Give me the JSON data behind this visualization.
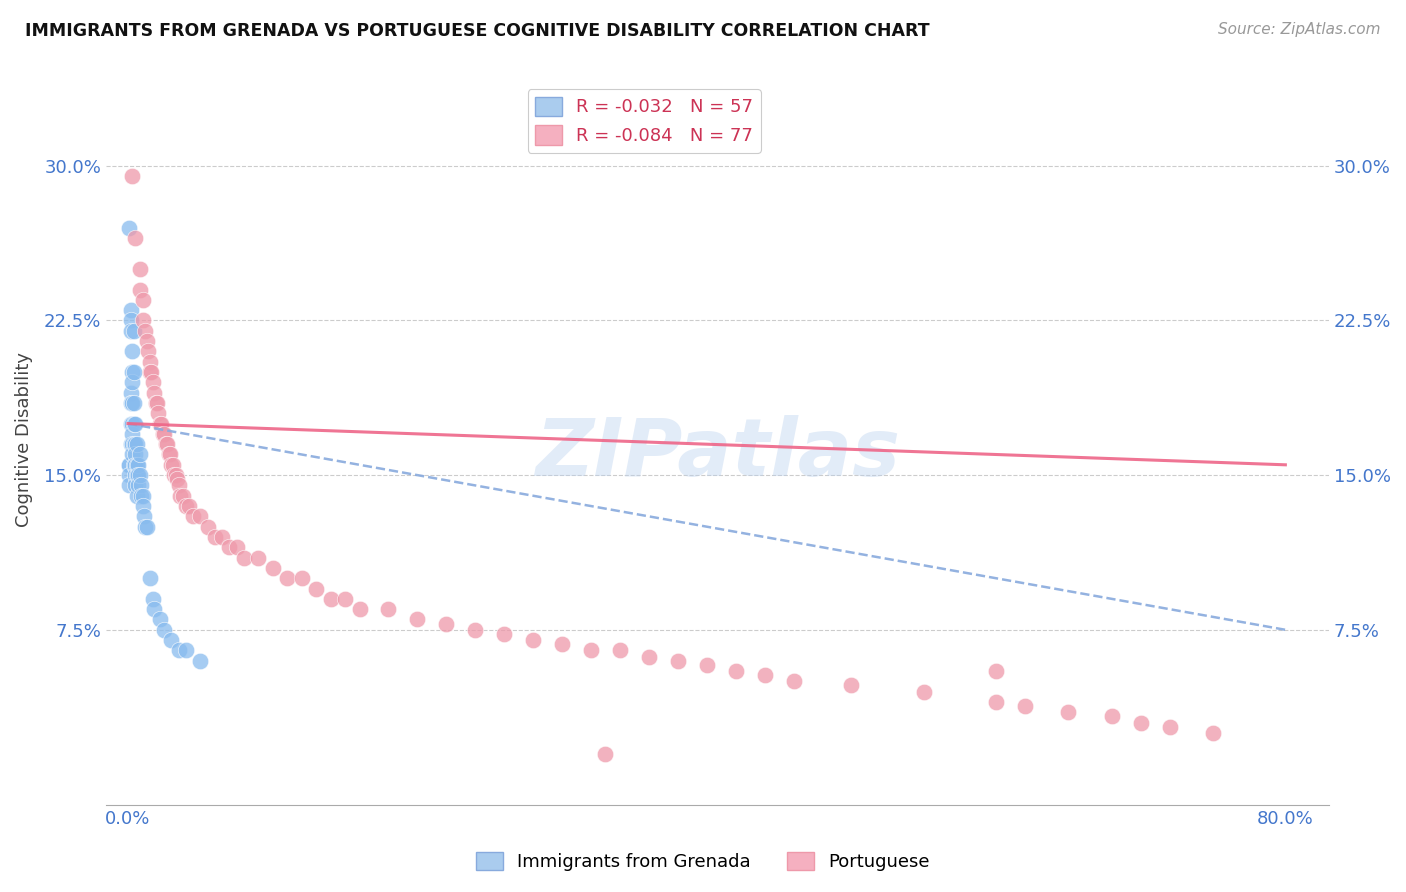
{
  "title": "IMMIGRANTS FROM GRENADA VS PORTUGUESE COGNITIVE DISABILITY CORRELATION CHART",
  "source": "Source: ZipAtlas.com",
  "ylabel": "Cognitive Disability",
  "ytick_labels": [
    "7.5%",
    "15.0%",
    "22.5%",
    "30.0%"
  ],
  "ytick_values": [
    0.075,
    0.15,
    0.225,
    0.3
  ],
  "xlim": [
    0.0,
    0.8
  ],
  "ylim": [
    0.0,
    0.335
  ],
  "grenada_color": "#88bbee",
  "portuguese_color": "#ee99aa",
  "grenada_line_color": "#88aadd",
  "portuguese_line_color": "#ee6688",
  "watermark": "ZIPatlas",
  "grenada_R": -0.032,
  "grenada_N": 57,
  "portuguese_R": -0.084,
  "portuguese_N": 77,
  "legend1_label": "R = -0.032   N = 57",
  "legend2_label": "R = -0.084   N = 77",
  "bottom_legend1": "Immigrants from Grenada",
  "bottom_legend2": "Portuguese",
  "grenada_x": [
    0.001,
    0.001,
    0.001,
    0.001,
    0.001,
    0.002,
    0.002,
    0.002,
    0.002,
    0.002,
    0.002,
    0.002,
    0.003,
    0.003,
    0.003,
    0.003,
    0.003,
    0.003,
    0.003,
    0.003,
    0.004,
    0.004,
    0.004,
    0.004,
    0.004,
    0.004,
    0.005,
    0.005,
    0.005,
    0.005,
    0.005,
    0.005,
    0.006,
    0.006,
    0.006,
    0.006,
    0.007,
    0.007,
    0.007,
    0.008,
    0.008,
    0.009,
    0.009,
    0.01,
    0.01,
    0.011,
    0.012,
    0.013,
    0.015,
    0.017,
    0.018,
    0.022,
    0.025,
    0.03,
    0.035,
    0.04,
    0.05
  ],
  "grenada_y": [
    0.27,
    0.155,
    0.155,
    0.15,
    0.145,
    0.23,
    0.225,
    0.22,
    0.19,
    0.185,
    0.175,
    0.165,
    0.21,
    0.2,
    0.195,
    0.185,
    0.175,
    0.17,
    0.165,
    0.16,
    0.22,
    0.2,
    0.185,
    0.175,
    0.165,
    0.155,
    0.175,
    0.165,
    0.16,
    0.155,
    0.15,
    0.145,
    0.165,
    0.155,
    0.15,
    0.14,
    0.155,
    0.15,
    0.145,
    0.16,
    0.15,
    0.145,
    0.14,
    0.14,
    0.135,
    0.13,
    0.125,
    0.125,
    0.1,
    0.09,
    0.085,
    0.08,
    0.075,
    0.07,
    0.065,
    0.065,
    0.06
  ],
  "portuguese_x": [
    0.003,
    0.005,
    0.008,
    0.008,
    0.01,
    0.01,
    0.012,
    0.013,
    0.014,
    0.015,
    0.015,
    0.016,
    0.017,
    0.018,
    0.019,
    0.02,
    0.021,
    0.022,
    0.023,
    0.024,
    0.025,
    0.026,
    0.027,
    0.028,
    0.029,
    0.03,
    0.031,
    0.032,
    0.033,
    0.034,
    0.035,
    0.036,
    0.038,
    0.04,
    0.042,
    0.045,
    0.05,
    0.055,
    0.06,
    0.065,
    0.07,
    0.075,
    0.08,
    0.09,
    0.1,
    0.11,
    0.12,
    0.13,
    0.14,
    0.15,
    0.16,
    0.18,
    0.2,
    0.22,
    0.24,
    0.26,
    0.28,
    0.3,
    0.32,
    0.34,
    0.36,
    0.38,
    0.4,
    0.42,
    0.44,
    0.46,
    0.5,
    0.55,
    0.6,
    0.62,
    0.65,
    0.68,
    0.7,
    0.72,
    0.75,
    0.33,
    0.6
  ],
  "portuguese_y": [
    0.295,
    0.265,
    0.25,
    0.24,
    0.235,
    0.225,
    0.22,
    0.215,
    0.21,
    0.205,
    0.2,
    0.2,
    0.195,
    0.19,
    0.185,
    0.185,
    0.18,
    0.175,
    0.175,
    0.17,
    0.17,
    0.165,
    0.165,
    0.16,
    0.16,
    0.155,
    0.155,
    0.15,
    0.15,
    0.148,
    0.145,
    0.14,
    0.14,
    0.135,
    0.135,
    0.13,
    0.13,
    0.125,
    0.12,
    0.12,
    0.115,
    0.115,
    0.11,
    0.11,
    0.105,
    0.1,
    0.1,
    0.095,
    0.09,
    0.09,
    0.085,
    0.085,
    0.08,
    0.078,
    0.075,
    0.073,
    0.07,
    0.068,
    0.065,
    0.065,
    0.062,
    0.06,
    0.058,
    0.055,
    0.053,
    0.05,
    0.048,
    0.045,
    0.04,
    0.038,
    0.035,
    0.033,
    0.03,
    0.028,
    0.025,
    0.015,
    0.055
  ]
}
